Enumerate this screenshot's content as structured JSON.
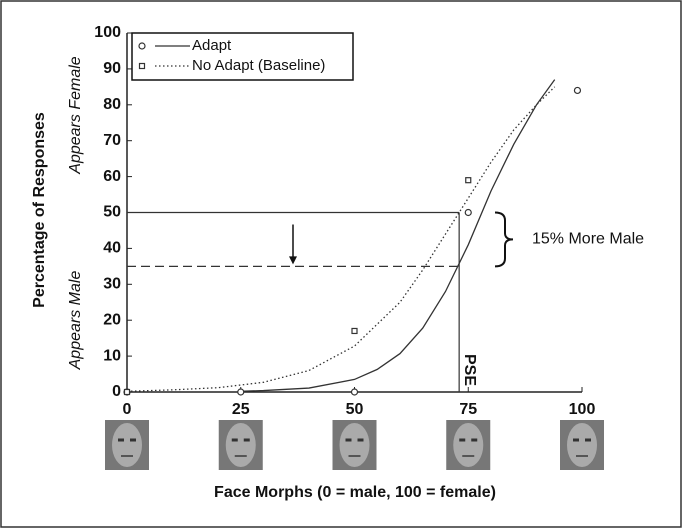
{
  "chart_data": {
    "type": "line",
    "xlabel": "Face Morphs (0 = male, 100 = female)",
    "ylabel": "Percentage of Responses",
    "upper_label": "Appears Female",
    "lower_label": "Appears Male",
    "xlim": [
      0,
      100
    ],
    "ylim": [
      0,
      100
    ],
    "xticks": [
      0,
      25,
      50,
      75,
      100
    ],
    "yticks": [
      0,
      10,
      20,
      30,
      40,
      50,
      60,
      70,
      80,
      90,
      100
    ],
    "legend": "upper left",
    "series": [
      {
        "name": "Adapt",
        "color": "#333333",
        "line_style": "solid",
        "marker": "circle",
        "curve_x": [
          25,
          30,
          40,
          50,
          55,
          60,
          65,
          70,
          75,
          80,
          85,
          90,
          94
        ],
        "curve_y": [
          0.2,
          0.4,
          1.1,
          3.5,
          6.3,
          10.7,
          17.8,
          28,
          41,
          56,
          69,
          80,
          87
        ],
        "points_x": [
          0,
          25,
          50,
          75,
          99
        ],
        "points_y": [
          0,
          0,
          0,
          50,
          84
        ]
      },
      {
        "name": "No Adapt (Baseline)",
        "color": "#333333",
        "line_style": "dotted",
        "marker": "square",
        "curve_x": [
          0,
          10,
          20,
          30,
          40,
          50,
          60,
          65,
          70,
          75,
          80,
          85,
          90,
          94
        ],
        "curve_y": [
          0.2,
          0.6,
          1.2,
          2.7,
          6,
          12.8,
          25,
          34,
          44,
          54,
          64,
          73,
          80,
          85
        ],
        "points_x": [
          0,
          50,
          75
        ],
        "points_y": [
          0,
          17,
          59
        ]
      }
    ],
    "hlines": [
      {
        "y": 50,
        "style": "solid"
      },
      {
        "y": 35,
        "style": "dashed"
      }
    ],
    "pse": {
      "x": 73,
      "label": "PSE"
    },
    "shift_label": "15% More Male"
  }
}
